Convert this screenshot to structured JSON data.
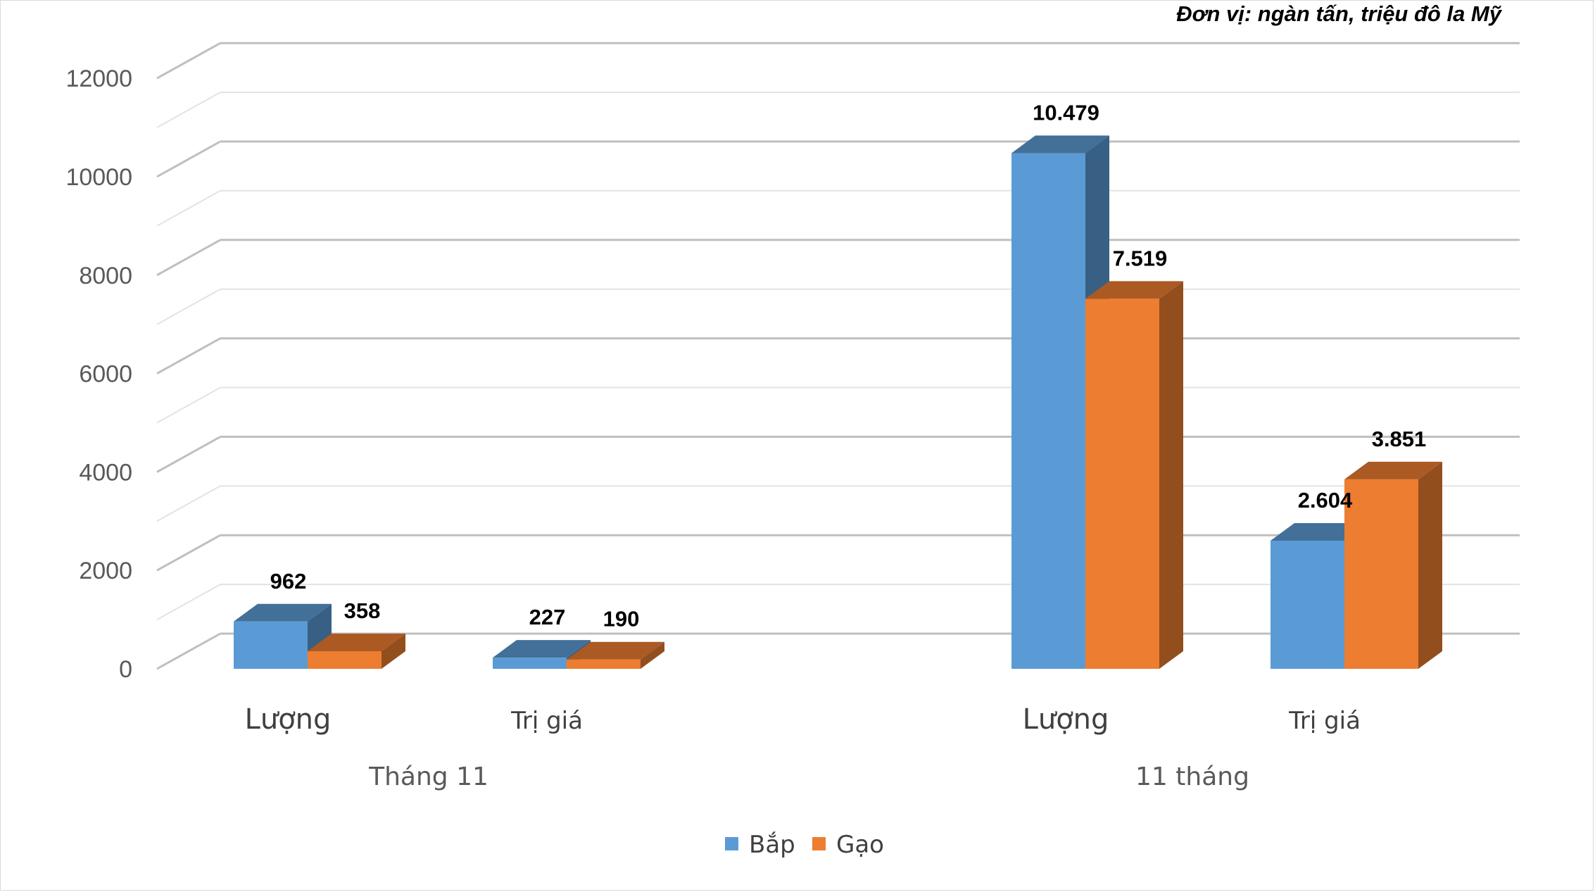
{
  "chart_data": {
    "type": "bar",
    "style": "3d-clustered-column",
    "unit_note": "Đơn vị: ngàn tấn, triệu đô la Mỹ",
    "groups": [
      {
        "label": "Tháng 11",
        "categories": [
          "Lượng",
          "Trị giá"
        ]
      },
      {
        "label": "11 tháng",
        "categories": [
          "Lượng",
          "Trị giá"
        ]
      }
    ],
    "categories": [
      "Lượng",
      "Trị giá",
      "Lượng",
      "Trị giá"
    ],
    "series": [
      {
        "name": "Bắp",
        "color": "#5B9BD5",
        "values": [
          962,
          227,
          10479,
          2604
        ],
        "labels": [
          "962",
          "227",
          "10.479",
          "2.604"
        ]
      },
      {
        "name": "Gạo",
        "color": "#ED7D31",
        "values": [
          358,
          190,
          7519,
          3851
        ],
        "labels": [
          "358",
          "190",
          "7.519",
          "3.851"
        ]
      }
    ],
    "ylim": [
      0,
      12000
    ],
    "yticks": [
      0,
      2000,
      4000,
      6000,
      8000,
      10000,
      12000
    ],
    "grid": true,
    "legend": "bottom"
  }
}
